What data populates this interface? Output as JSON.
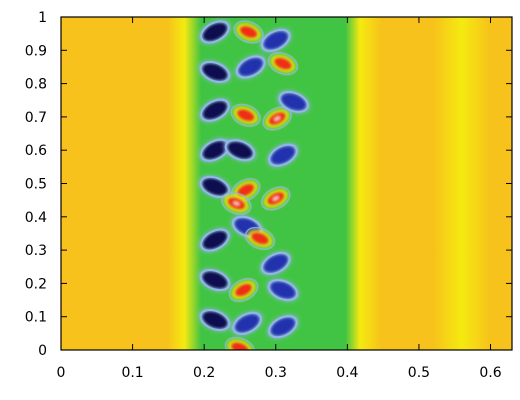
{
  "chart_data": {
    "type": "heatmap",
    "title": "",
    "xlabel": "",
    "ylabel": "",
    "xlim": [
      0,
      0.63
    ],
    "ylim": [
      0,
      1
    ],
    "x_ticks": [
      0,
      0.1,
      0.2,
      0.3,
      0.4,
      0.5,
      0.6
    ],
    "x_tick_labels": [
      "0",
      "0.1",
      "0.2",
      "0.3",
      "0.4",
      "0.5",
      "0.6"
    ],
    "y_ticks": [
      0,
      0.1,
      0.2,
      0.3,
      0.4,
      0.5,
      0.6,
      0.7,
      0.8,
      0.9,
      1
    ],
    "y_tick_labels": [
      "0",
      "0.1",
      "0.2",
      "0.3",
      "0.4",
      "0.5",
      "0.6",
      "0.7",
      "0.8",
      "0.9",
      "1"
    ],
    "grid": false,
    "legend": "none",
    "colormap": [
      "#0b1150",
      "#2b3dd8",
      "#9fb2ff",
      "#3fc43f",
      "#f5ea10",
      "#f6c51b",
      "#ef2a15",
      "#f2b8b0"
    ],
    "background_band_colors": {
      "outer": "#f6c21b",
      "edge": "#f5ea10",
      "center": "#41c443"
    },
    "mixing_zone_x": [
      0.18,
      0.41
    ],
    "features": {
      "vortices": [
        {
          "x": 0.215,
          "y": 0.955,
          "level": 0.0
        },
        {
          "x": 0.262,
          "y": 0.955,
          "level": 0.92
        },
        {
          "x": 0.3,
          "y": 0.93,
          "level": 0.1
        },
        {
          "x": 0.215,
          "y": 0.835,
          "level": 0.0
        },
        {
          "x": 0.265,
          "y": 0.85,
          "level": 0.1
        },
        {
          "x": 0.31,
          "y": 0.86,
          "level": 0.85
        },
        {
          "x": 0.215,
          "y": 0.72,
          "level": 0.0
        },
        {
          "x": 0.258,
          "y": 0.705,
          "level": 0.92
        },
        {
          "x": 0.302,
          "y": 0.695,
          "level": 0.95
        },
        {
          "x": 0.325,
          "y": 0.745,
          "level": 0.1
        },
        {
          "x": 0.215,
          "y": 0.6,
          "level": 0.0
        },
        {
          "x": 0.25,
          "y": 0.6,
          "level": 0.0
        },
        {
          "x": 0.31,
          "y": 0.585,
          "level": 0.1
        },
        {
          "x": 0.215,
          "y": 0.49,
          "level": 0.0
        },
        {
          "x": 0.258,
          "y": 0.48,
          "level": 0.92
        },
        {
          "x": 0.245,
          "y": 0.44,
          "level": 0.95
        },
        {
          "x": 0.3,
          "y": 0.455,
          "level": 0.98
        },
        {
          "x": 0.26,
          "y": 0.37,
          "level": 0.1
        },
        {
          "x": 0.215,
          "y": 0.33,
          "level": 0.0
        },
        {
          "x": 0.278,
          "y": 0.335,
          "level": 0.93
        },
        {
          "x": 0.3,
          "y": 0.26,
          "level": 0.1
        },
        {
          "x": 0.215,
          "y": 0.21,
          "level": 0.0
        },
        {
          "x": 0.255,
          "y": 0.18,
          "level": 0.92
        },
        {
          "x": 0.31,
          "y": 0.18,
          "level": 0.1
        },
        {
          "x": 0.26,
          "y": 0.08,
          "level": 0.1
        },
        {
          "x": 0.215,
          "y": 0.09,
          "level": 0.0
        },
        {
          "x": 0.31,
          "y": 0.07,
          "level": 0.1
        },
        {
          "x": 0.25,
          "y": 0.005,
          "level": 0.9
        }
      ]
    }
  }
}
